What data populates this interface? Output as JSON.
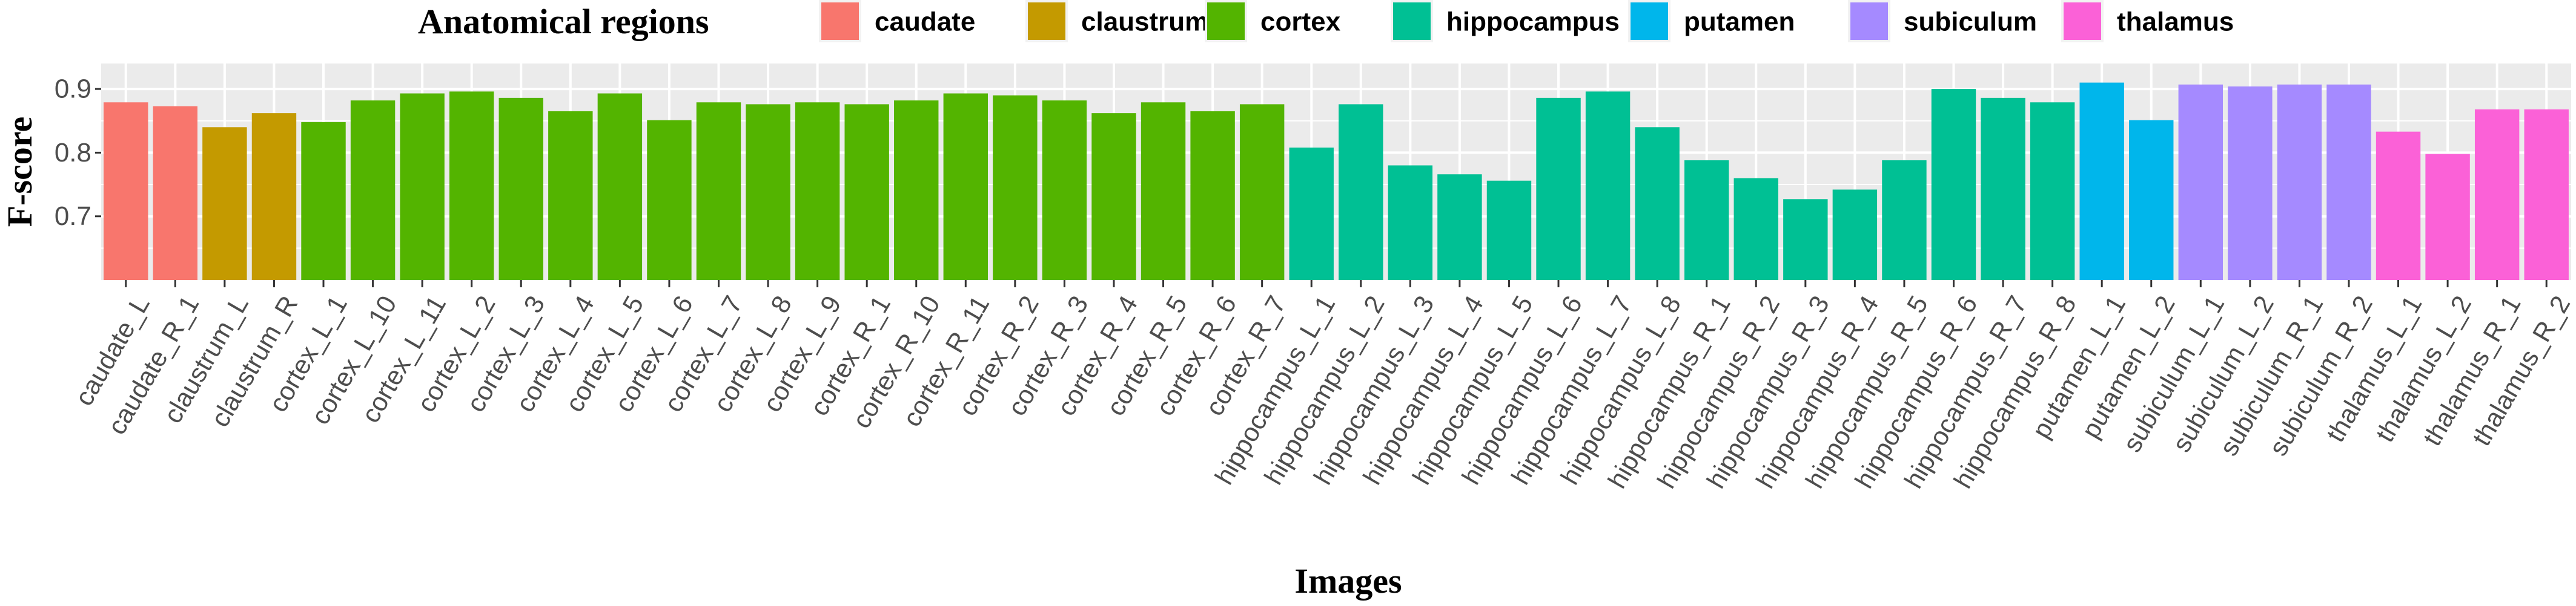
{
  "chart_data": {
    "type": "bar",
    "xlabel": "Images",
    "ylabel": "F-score",
    "ylim": [
      0.6,
      0.94
    ],
    "yticks": [
      0.7,
      0.8,
      0.9
    ],
    "ytick_labels": [
      "0.7",
      "0.8",
      "0.9"
    ],
    "grid": true,
    "legend": {
      "title": "Anatomical regions",
      "placement": "top",
      "entries": [
        {
          "name": "caudate",
          "color": "#F8766D"
        },
        {
          "name": "claustrum",
          "color": "#C49A00"
        },
        {
          "name": "cortex",
          "color": "#53B400"
        },
        {
          "name": "hippocampus",
          "color": "#00C094"
        },
        {
          "name": "putamen",
          "color": "#00B6EB"
        },
        {
          "name": "subiculum",
          "color": "#A58AFF"
        },
        {
          "name": "thalamus",
          "color": "#FB61D7"
        }
      ]
    },
    "categories": [
      "caudate_L",
      "caudate_R_1",
      "claustrum_L",
      "claustrum_R",
      "cortex_L_1",
      "cortex_L_10",
      "cortex_L_11",
      "cortex_L_2",
      "cortex_L_3",
      "cortex_L_4",
      "cortex_L_5",
      "cortex_L_6",
      "cortex_L_7",
      "cortex_L_8",
      "cortex_L_9",
      "cortex_R_1",
      "cortex_R_10",
      "cortex_R_11",
      "cortex_R_2",
      "cortex_R_3",
      "cortex_R_4",
      "cortex_R_5",
      "cortex_R_6",
      "cortex_R_7",
      "hippocampus_L_1",
      "hippocampus_L_2",
      "hippocampus_L_3",
      "hippocampus_L_4",
      "hippocampus_L_5",
      "hippocampus_L_6",
      "hippocampus_L_7",
      "hippocampus_L_8",
      "hippocampus_R_1",
      "hippocampus_R_2",
      "hippocampus_R_3",
      "hippocampus_R_4",
      "hippocampus_R_5",
      "hippocampus_R_6",
      "hippocampus_R_7",
      "hippocampus_R_8",
      "putamen_L_1",
      "putamen_L_2",
      "subiculum_L_1",
      "subiculum_L_2",
      "subiculum_R_1",
      "subiculum_R_2",
      "thalamus_L_1",
      "thalamus_L_2",
      "thalamus_R_1",
      "thalamus_R_2"
    ],
    "groups": [
      "caudate",
      "caudate",
      "claustrum",
      "claustrum",
      "cortex",
      "cortex",
      "cortex",
      "cortex",
      "cortex",
      "cortex",
      "cortex",
      "cortex",
      "cortex",
      "cortex",
      "cortex",
      "cortex",
      "cortex",
      "cortex",
      "cortex",
      "cortex",
      "cortex",
      "cortex",
      "cortex",
      "cortex",
      "hippocampus",
      "hippocampus",
      "hippocampus",
      "hippocampus",
      "hippocampus",
      "hippocampus",
      "hippocampus",
      "hippocampus",
      "hippocampus",
      "hippocampus",
      "hippocampus",
      "hippocampus",
      "hippocampus",
      "hippocampus",
      "hippocampus",
      "hippocampus",
      "putamen",
      "putamen",
      "subiculum",
      "subiculum",
      "subiculum",
      "subiculum",
      "thalamus",
      "thalamus",
      "thalamus",
      "thalamus"
    ],
    "values": [
      0.879,
      0.873,
      0.84,
      0.862,
      0.848,
      0.882,
      0.893,
      0.896,
      0.886,
      0.865,
      0.893,
      0.851,
      0.879,
      0.876,
      0.879,
      0.876,
      0.882,
      0.893,
      0.89,
      0.882,
      0.862,
      0.879,
      0.865,
      0.876,
      0.808,
      0.876,
      0.78,
      0.766,
      0.756,
      0.886,
      0.896,
      0.84,
      0.788,
      0.76,
      0.727,
      0.742,
      0.788,
      0.9,
      0.886,
      0.879,
      0.91,
      0.851,
      0.907,
      0.904,
      0.907,
      0.907,
      0.833,
      0.798,
      0.868,
      0.868
    ]
  }
}
